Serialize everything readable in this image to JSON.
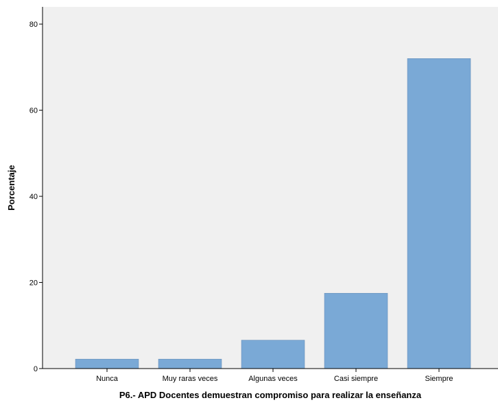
{
  "chart_data": {
    "type": "bar",
    "categories": [
      "Nunca",
      "Muy raras veces",
      "Algunas veces",
      "Casi siempre",
      "Siempre"
    ],
    "values": [
      2.2,
      2.2,
      6.6,
      17.5,
      72.0
    ],
    "xlabel": "P6.- APD Docentes demuestran compromiso para realizar la enseñanza",
    "ylabel": "Porcentaje",
    "ylim": [
      0,
      84
    ],
    "yticks": [
      0,
      20,
      40,
      60,
      80
    ],
    "grid": false,
    "legend": "none",
    "colors": {
      "plot_background": "#f0f0f0",
      "bar_fill": "#7aa9d6",
      "bar_stroke": "#5e88b3",
      "axis": "#000000"
    }
  }
}
